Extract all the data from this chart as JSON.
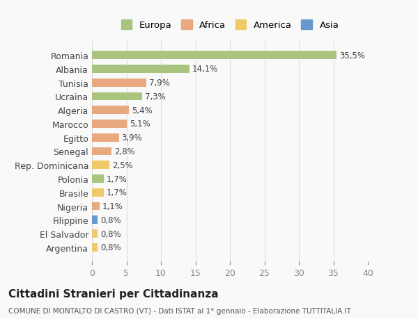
{
  "countries": [
    "Romania",
    "Albania",
    "Tunisia",
    "Ucraina",
    "Algeria",
    "Marocco",
    "Egitto",
    "Senegal",
    "Rep. Dominicana",
    "Polonia",
    "Brasile",
    "Nigeria",
    "Filippine",
    "El Salvador",
    "Argentina"
  ],
  "values": [
    35.5,
    14.1,
    7.9,
    7.3,
    5.4,
    5.1,
    3.9,
    2.8,
    2.5,
    1.7,
    1.7,
    1.1,
    0.8,
    0.8,
    0.8
  ],
  "labels": [
    "35,5%",
    "14,1%",
    "7,9%",
    "7,3%",
    "5,4%",
    "5,1%",
    "3,9%",
    "2,8%",
    "2,5%",
    "1,7%",
    "1,7%",
    "1,1%",
    "0,8%",
    "0,8%",
    "0,8%"
  ],
  "continents": [
    "Europa",
    "Europa",
    "Africa",
    "Europa",
    "Africa",
    "Africa",
    "Africa",
    "Africa",
    "America",
    "Europa",
    "America",
    "Africa",
    "Asia",
    "America",
    "America"
  ],
  "colors": {
    "Europa": "#a8c47f",
    "Africa": "#e8a97e",
    "America": "#f0c96a",
    "Asia": "#6699cc"
  },
  "legend_labels": [
    "Europa",
    "Africa",
    "America",
    "Asia"
  ],
  "legend_colors": [
    "#a8c47f",
    "#e8a97e",
    "#f0c96a",
    "#6699cc"
  ],
  "xlim": [
    0,
    40
  ],
  "xticks": [
    0,
    5,
    10,
    15,
    20,
    25,
    30,
    35,
    40
  ],
  "title": "Cittadini Stranieri per Cittadinanza",
  "subtitle": "COMUNE DI MONTALTO DI CASTRO (VT) - Dati ISTAT al 1° gennaio - Elaborazione TUTTITALIA.IT",
  "bg_color": "#f9f9f9",
  "grid_color": "#dddddd"
}
